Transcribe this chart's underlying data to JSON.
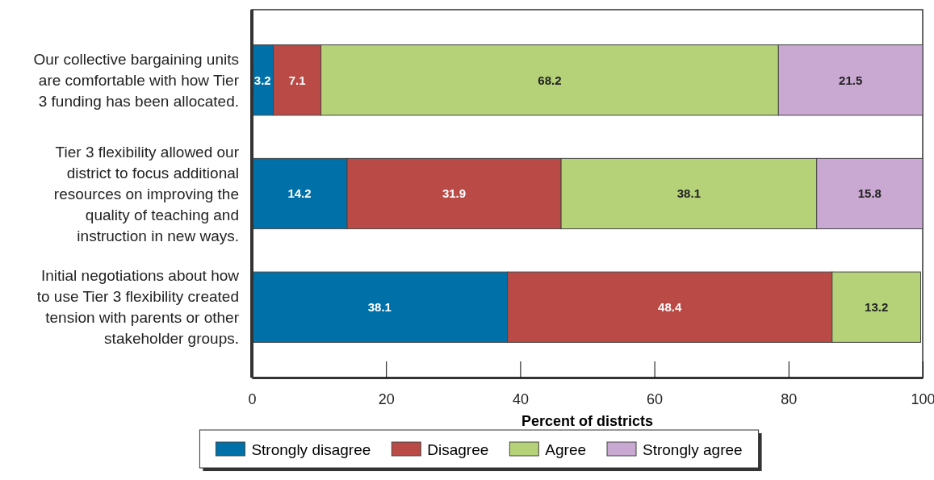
{
  "chart_data": {
    "type": "bar",
    "orientation": "horizontal",
    "stacked": true,
    "xlabel": "Percent of districts",
    "categories": [
      "Our collective bargaining units are comfortable with how Tier 3 funding has been allocated.",
      "Tier 3 flexibility allowed our district to focus additional resources on improving the quality of teaching and instruction in new ways.",
      "Initial negotiations about how to use Tier 3 flexibility created tension with parents or other stakeholder groups."
    ],
    "series": [
      {
        "name": "Strongly disagree",
        "color": "#0070a8",
        "values": [
          3.2,
          14.2,
          38.1
        ]
      },
      {
        "name": "Disagree",
        "color": "#b94a45",
        "values": [
          7.1,
          31.9,
          48.4
        ]
      },
      {
        "name": "Agree",
        "color": "#b5d279",
        "values": [
          68.2,
          38.1,
          13.2
        ]
      },
      {
        "name": "Strongly agree",
        "color": "#c9a8d2",
        "values": [
          21.5,
          15.8,
          null
        ]
      }
    ],
    "xlim": [
      0,
      100
    ],
    "xticks": [
      0,
      20,
      40,
      60,
      80,
      100
    ],
    "data_labels": true,
    "legend": "bottom",
    "grid": false
  }
}
